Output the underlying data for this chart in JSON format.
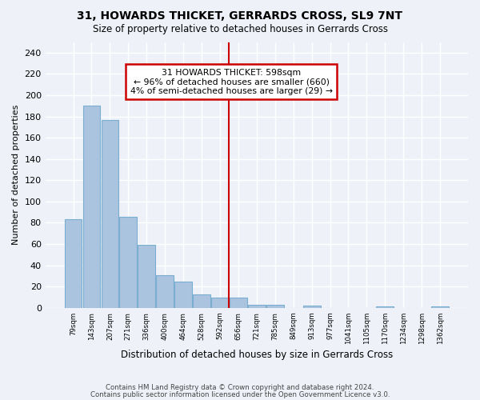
{
  "title": "31, HOWARDS THICKET, GERRARDS CROSS, SL9 7NT",
  "subtitle": "Size of property relative to detached houses in Gerrards Cross",
  "xlabel": "Distribution of detached houses by size in Gerrards Cross",
  "ylabel": "Number of detached properties",
  "footer1": "Contains HM Land Registry data © Crown copyright and database right 2024.",
  "footer2": "Contains public sector information licensed under the Open Government Licence v3.0.",
  "annotation_title": "31 HOWARDS THICKET: 598sqm",
  "annotation_line1": "← 96% of detached houses are smaller (660)",
  "annotation_line2": "4% of semi-detached houses are larger (29) →",
  "bar_values": [
    83,
    190,
    177,
    86,
    59,
    31,
    25,
    13,
    10,
    10,
    3,
    3,
    0,
    2,
    0,
    0,
    0,
    1,
    0,
    0,
    1
  ],
  "bar_labels": [
    "79sqm",
    "143sqm",
    "207sqm",
    "271sqm",
    "336sqm",
    "400sqm",
    "464sqm",
    "528sqm",
    "592sqm",
    "656sqm",
    "721sqm",
    "785sqm",
    "849sqm",
    "913sqm",
    "977sqm",
    "1041sqm",
    "1105sqm",
    "1170sqm",
    "1234sqm",
    "1298sqm",
    "1362sqm"
  ],
  "property_line_x": 8.5,
  "bar_color": "#aac4e0",
  "bar_edge_color": "#7aaed0",
  "line_color": "#cc0000",
  "annotation_box_edge": "#cc0000",
  "background_color": "#eef2f8",
  "grid_color": "#ffffff",
  "ylim": [
    0,
    250
  ],
  "yticks": [
    0,
    20,
    40,
    60,
    80,
    100,
    120,
    140,
    160,
    180,
    200,
    220,
    240
  ]
}
